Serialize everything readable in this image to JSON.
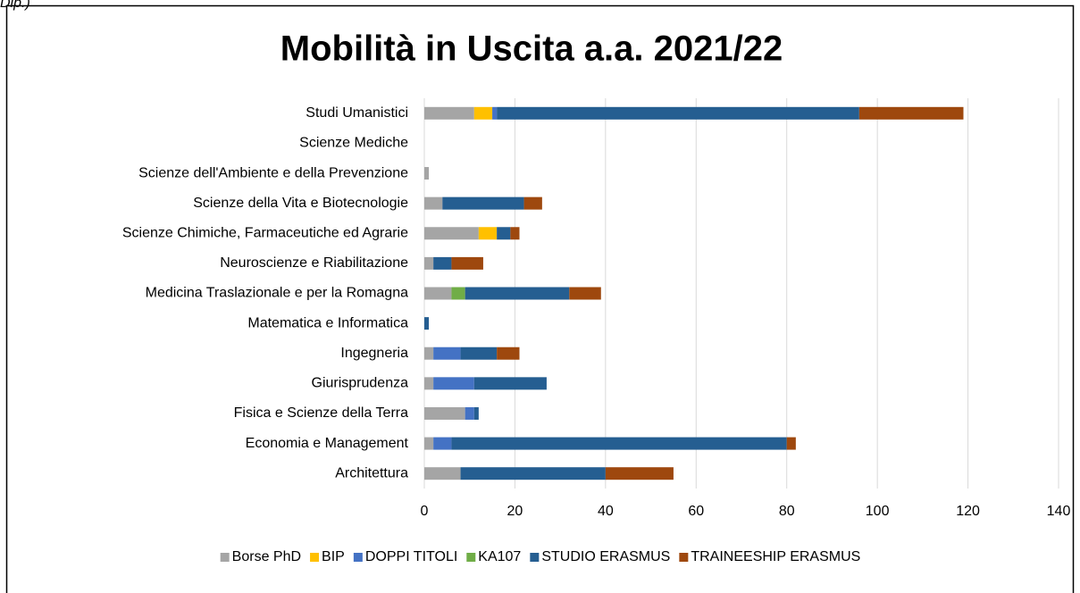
{
  "caption": "Dip.)",
  "chart_data": {
    "type": "stacked_hbar",
    "title": "Mobilità in Uscita a.a. 2021/22",
    "categories": [
      "Studi Umanistici",
      "Scienze Mediche",
      "Scienze dell'Ambiente e della Prevenzione",
      "Scienze della Vita e Biotecnologie",
      "Scienze Chimiche, Farmaceutiche ed Agrarie",
      "Neuroscienze e Riabilitazione",
      "Medicina Traslazionale e per la Romagna",
      "Matematica e Informatica",
      "Ingegneria",
      "Giurisprudenza",
      "Fisica e Scienze della Terra",
      "Economia e Management",
      "Architettura"
    ],
    "series": [
      {
        "name": "Borse PhD",
        "color": "#a5a5a5",
        "values": [
          11,
          0,
          1,
          4,
          12,
          2,
          6,
          0,
          2,
          2,
          9,
          2,
          8
        ]
      },
      {
        "name": "BIP",
        "color": "#ffc000",
        "values": [
          4,
          0,
          0,
          0,
          4,
          0,
          0,
          0,
          0,
          0,
          0,
          0,
          0
        ]
      },
      {
        "name": "DOPPI TITOLI",
        "color": "#4472c4",
        "values": [
          1,
          0,
          0,
          0,
          0,
          0,
          0,
          0,
          6,
          9,
          2,
          4,
          0
        ]
      },
      {
        "name": "KA107",
        "color": "#70ad47",
        "values": [
          0,
          0,
          0,
          0,
          0,
          0,
          3,
          0,
          0,
          0,
          0,
          0,
          0
        ]
      },
      {
        "name": "STUDIO ERASMUS",
        "color": "#255e91",
        "values": [
          80,
          0,
          0,
          18,
          3,
          4,
          23,
          1,
          8,
          16,
          1,
          74,
          32
        ]
      },
      {
        "name": "TRAINEESHIP ERASMUS",
        "color": "#9e480e",
        "values": [
          23,
          0,
          0,
          4,
          2,
          7,
          7,
          0,
          5,
          0,
          0,
          2,
          15
        ]
      }
    ],
    "xlim": [
      0,
      140
    ],
    "xticks": [
      0,
      20,
      40,
      60,
      80,
      100,
      120,
      140
    ],
    "grid": true,
    "legend": "bottom"
  }
}
